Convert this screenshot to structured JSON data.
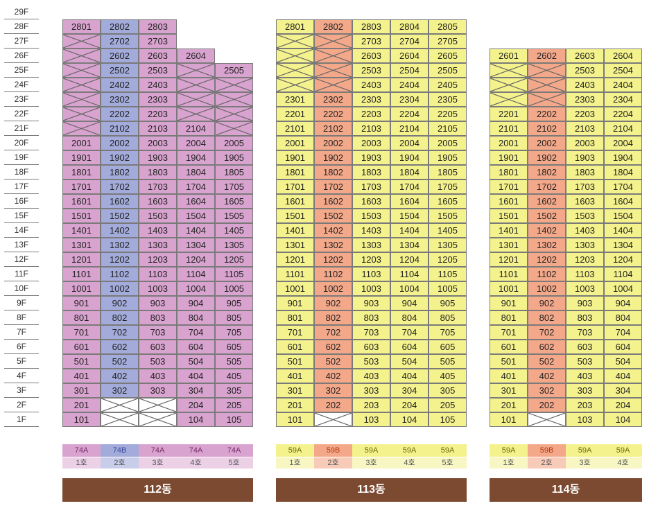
{
  "floors": [
    "29F",
    "28F",
    "27F",
    "26F",
    "25F",
    "24F",
    "23F",
    "22F",
    "21F",
    "20F",
    "19F",
    "18F",
    "17F",
    "16F",
    "15F",
    "14F",
    "13F",
    "12F",
    "11F",
    "10F",
    "9F",
    "8F",
    "7F",
    "6F",
    "5F",
    "4F",
    "3F",
    "2F",
    "1F"
  ],
  "colors": {
    "pink": "#d9a3cf",
    "blue": "#a2abda",
    "yellow": "#f4f28c",
    "orange": "#f4a88a",
    "brown": "#7b4a31"
  },
  "buildings": [
    {
      "name": "112동",
      "lines": [
        {
          "label": "1호",
          "type": "74A",
          "color": "pink",
          "units": {
            "28": "2801",
            "20": "2001",
            "19": "1901",
            "18": "1801",
            "17": "1701",
            "16": "1601",
            "15": "1501",
            "14": "1401",
            "13": "1301",
            "12": "1201",
            "11": "1101",
            "10": "1001",
            "9": "901",
            "8": "801",
            "7": "701",
            "6": "601",
            "5": "501",
            "4": "401",
            "3": "301",
            "2": "201",
            "1": "101"
          },
          "crossed": [
            27,
            26,
            25,
            24,
            23,
            22,
            21
          ]
        },
        {
          "label": "2호",
          "type": "74B",
          "color": "blue",
          "units": {
            "28": "2802",
            "27": "2702",
            "26": "2602",
            "25": "2502",
            "24": "2402",
            "23": "2302",
            "22": "2202",
            "21": "2102",
            "20": "2002",
            "19": "1902",
            "18": "1802",
            "17": "1702",
            "16": "1602",
            "15": "1502",
            "14": "1402",
            "13": "1302",
            "12": "1202",
            "11": "1102",
            "10": "1002",
            "9": "902",
            "8": "802",
            "7": "702",
            "6": "602",
            "5": "502",
            "4": "402",
            "3": "302"
          },
          "crossed": [],
          "blank_crossed": [
            2,
            1
          ]
        },
        {
          "label": "3호",
          "type": "74A",
          "color": "pink",
          "units": {
            "28": "2803",
            "27": "2703",
            "26": "2603",
            "25": "2503",
            "24": "2403",
            "23": "2303",
            "22": "2203",
            "21": "2103",
            "20": "2003",
            "19": "1903",
            "18": "1803",
            "17": "1703",
            "16": "1603",
            "15": "1503",
            "14": "1403",
            "13": "1303",
            "12": "1203",
            "11": "1103",
            "10": "1003",
            "9": "903",
            "8": "803",
            "7": "703",
            "6": "603",
            "5": "503",
            "4": "403",
            "3": "303"
          },
          "crossed": [],
          "blank_crossed": [
            2,
            1
          ]
        },
        {
          "label": "4호",
          "type": "74A",
          "color": "pink",
          "units": {
            "26": "2604",
            "21": "2104",
            "20": "2004",
            "19": "1904",
            "18": "1804",
            "17": "1704",
            "16": "1604",
            "15": "1504",
            "14": "1404",
            "13": "1304",
            "12": "1204",
            "11": "1104",
            "10": "1004",
            "9": "904",
            "8": "804",
            "7": "704",
            "6": "604",
            "5": "504",
            "4": "404",
            "3": "304",
            "2": "204",
            "1": "104"
          },
          "crossed": [
            25,
            24,
            23,
            22
          ]
        },
        {
          "label": "5호",
          "type": "74A",
          "color": "pink",
          "units": {
            "25": "2505",
            "20": "2005",
            "19": "1905",
            "18": "1805",
            "17": "1705",
            "16": "1605",
            "15": "1505",
            "14": "1405",
            "13": "1305",
            "12": "1205",
            "11": "1105",
            "10": "1005",
            "9": "905",
            "8": "805",
            "7": "705",
            "6": "605",
            "5": "505",
            "4": "405",
            "3": "305",
            "2": "205",
            "1": "105"
          },
          "crossed": [
            24,
            23,
            22,
            21
          ]
        }
      ]
    },
    {
      "name": "113동",
      "lines": [
        {
          "label": "1호",
          "type": "59A",
          "color": "yellow",
          "units": {
            "28": "2801",
            "23": "2301",
            "22": "2201",
            "21": "2101",
            "20": "2001",
            "19": "1901",
            "18": "1801",
            "17": "1701",
            "16": "1601",
            "15": "1501",
            "14": "1401",
            "13": "1301",
            "12": "1201",
            "11": "1101",
            "10": "1001",
            "9": "901",
            "8": "801",
            "7": "701",
            "6": "601",
            "5": "501",
            "4": "401",
            "3": "301",
            "2": "201",
            "1": "101"
          },
          "crossed": [
            27,
            26,
            25,
            24
          ]
        },
        {
          "label": "2호",
          "type": "59B",
          "color": "orange",
          "units": {
            "28": "2802",
            "23": "2302",
            "22": "2202",
            "21": "2102",
            "20": "2002",
            "19": "1902",
            "18": "1802",
            "17": "1702",
            "16": "1602",
            "15": "1502",
            "14": "1402",
            "13": "1302",
            "12": "1202",
            "11": "1102",
            "10": "1002",
            "9": "902",
            "8": "802",
            "7": "702",
            "6": "602",
            "5": "502",
            "4": "402",
            "3": "302",
            "2": "202"
          },
          "crossed": [
            27,
            26,
            25,
            24
          ],
          "blank_crossed": [
            1
          ]
        },
        {
          "label": "3호",
          "type": "59A",
          "color": "yellow",
          "units": {
            "28": "2803",
            "27": "2703",
            "26": "2603",
            "25": "2503",
            "24": "2403",
            "23": "2303",
            "22": "2203",
            "21": "2103",
            "20": "2003",
            "19": "1903",
            "18": "1803",
            "17": "1703",
            "16": "1603",
            "15": "1503",
            "14": "1403",
            "13": "1303",
            "12": "1203",
            "11": "1103",
            "10": "1003",
            "9": "903",
            "8": "803",
            "7": "703",
            "6": "603",
            "5": "503",
            "4": "403",
            "3": "303",
            "2": "203",
            "1": "103"
          },
          "crossed": []
        },
        {
          "label": "4호",
          "type": "59A",
          "color": "yellow",
          "units": {
            "28": "2804",
            "27": "2704",
            "26": "2604",
            "25": "2504",
            "24": "2404",
            "23": "2304",
            "22": "2204",
            "21": "2104",
            "20": "2004",
            "19": "1904",
            "18": "1804",
            "17": "1704",
            "16": "1604",
            "15": "1504",
            "14": "1404",
            "13": "1304",
            "12": "1204",
            "11": "1104",
            "10": "1004",
            "9": "904",
            "8": "804",
            "7": "704",
            "6": "604",
            "5": "504",
            "4": "404",
            "3": "304",
            "2": "204",
            "1": "104"
          },
          "crossed": []
        },
        {
          "label": "5호",
          "type": "59A",
          "color": "yellow",
          "units": {
            "28": "2805",
            "27": "2705",
            "26": "2605",
            "25": "2505",
            "24": "2405",
            "23": "2305",
            "22": "2205",
            "21": "2105",
            "20": "2005",
            "19": "1905",
            "18": "1805",
            "17": "1705",
            "16": "1605",
            "15": "1505",
            "14": "1405",
            "13": "1305",
            "12": "1205",
            "11": "1105",
            "10": "1005",
            "9": "905",
            "8": "805",
            "7": "705",
            "6": "605",
            "5": "505",
            "4": "405",
            "3": "305",
            "2": "205",
            "1": "105"
          },
          "crossed": []
        }
      ]
    },
    {
      "name": "114동",
      "lines": [
        {
          "label": "1호",
          "type": "59A",
          "color": "yellow",
          "units": {
            "26": "2601",
            "22": "2201",
            "21": "2101",
            "20": "2001",
            "19": "1901",
            "18": "1801",
            "17": "1701",
            "16": "1601",
            "15": "1501",
            "14": "1401",
            "13": "1301",
            "12": "1201",
            "11": "1101",
            "10": "1001",
            "9": "901",
            "8": "801",
            "7": "701",
            "6": "601",
            "5": "501",
            "4": "401",
            "3": "301",
            "2": "201",
            "1": "101"
          },
          "crossed": [
            25,
            24,
            23
          ]
        },
        {
          "label": "2호",
          "type": "59B",
          "color": "orange",
          "units": {
            "26": "2602",
            "22": "2202",
            "21": "2102",
            "20": "2002",
            "19": "1902",
            "18": "1802",
            "17": "1702",
            "16": "1602",
            "15": "1502",
            "14": "1402",
            "13": "1302",
            "12": "1202",
            "11": "1102",
            "10": "1002",
            "9": "902",
            "8": "802",
            "7": "702",
            "6": "602",
            "5": "502",
            "4": "402",
            "3": "302",
            "2": "202"
          },
          "crossed": [
            25,
            24,
            23
          ],
          "blank_crossed": [
            1
          ]
        },
        {
          "label": "3호",
          "type": "59A",
          "color": "yellow",
          "units": {
            "26": "2603",
            "25": "2503",
            "24": "2403",
            "23": "2303",
            "22": "2203",
            "21": "2103",
            "20": "2003",
            "19": "1903",
            "18": "1803",
            "17": "1703",
            "16": "1603",
            "15": "1503",
            "14": "1403",
            "13": "1303",
            "12": "1203",
            "11": "1103",
            "10": "1003",
            "9": "903",
            "8": "803",
            "7": "703",
            "6": "603",
            "5": "503",
            "4": "403",
            "3": "303",
            "2": "203",
            "1": "103"
          },
          "crossed": []
        },
        {
          "label": "4호",
          "type": "59A",
          "color": "yellow",
          "units": {
            "26": "2604",
            "25": "2504",
            "24": "2404",
            "23": "2304",
            "22": "2204",
            "21": "2104",
            "20": "2004",
            "19": "1904",
            "18": "1804",
            "17": "1704",
            "16": "1604",
            "15": "1504",
            "14": "1404",
            "13": "1304",
            "12": "1204",
            "11": "1104",
            "10": "1004",
            "9": "904",
            "8": "804",
            "7": "704",
            "6": "604",
            "5": "504",
            "4": "404",
            "3": "304",
            "2": "204",
            "1": "104"
          },
          "crossed": []
        }
      ]
    }
  ]
}
